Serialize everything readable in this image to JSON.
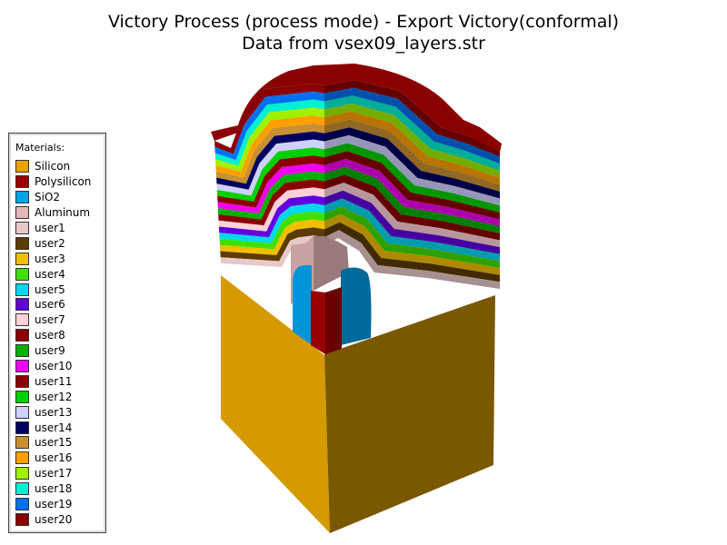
{
  "window": {
    "title_line1": "Victory Process  (process mode) - Export Victory(conformal)",
    "title_line2": "Data from vsex09_layers.str"
  },
  "legend": {
    "title": "Materials:",
    "items": [
      {
        "label": "Silicon",
        "color": "#E8A300"
      },
      {
        "label": "Polysilicon",
        "color": "#9B0000"
      },
      {
        "label": "SiO2",
        "color": "#00A3E8"
      },
      {
        "label": "Aluminum",
        "color": "#E2B8B8"
      },
      {
        "label": "user1",
        "color": "#E8C8C8"
      },
      {
        "label": "user2",
        "color": "#5C3A00"
      },
      {
        "label": "user3",
        "color": "#F0C000"
      },
      {
        "label": "user4",
        "color": "#40E000"
      },
      {
        "label": "user5",
        "color": "#00D8F0"
      },
      {
        "label": "user6",
        "color": "#6000E0"
      },
      {
        "label": "user7",
        "color": "#FFD0D8"
      },
      {
        "label": "user8",
        "color": "#8B0000"
      },
      {
        "label": "user9",
        "color": "#00B000"
      },
      {
        "label": "user10",
        "color": "#F000F0"
      },
      {
        "label": "user11",
        "color": "#8B0000"
      },
      {
        "label": "user12",
        "color": "#00D000"
      },
      {
        "label": "user13",
        "color": "#D0D0FF"
      },
      {
        "label": "user14",
        "color": "#000060"
      },
      {
        "label": "user15",
        "color": "#C89030"
      },
      {
        "label": "user16",
        "color": "#FFA000"
      },
      {
        "label": "user17",
        "color": "#A0F000"
      },
      {
        "label": "user18",
        "color": "#00F0D0"
      },
      {
        "label": "user19",
        "color": "#0070F0"
      },
      {
        "label": "user20",
        "color": "#8B0000"
      }
    ]
  },
  "structure": {
    "substrate_material": "Silicon",
    "layer_sequence": [
      "user1",
      "user2",
      "user3",
      "user4",
      "user5",
      "user6",
      "user7",
      "user8",
      "user9",
      "user10",
      "user11",
      "user12",
      "user13",
      "user14",
      "user15",
      "user16",
      "user17",
      "user18",
      "user19",
      "user20"
    ],
    "colors": {
      "silicon_front": "#D49A00",
      "silicon_side": "#7A5800",
      "aluminum_front": "#C9A2A2",
      "aluminum_side": "#9A7A7A",
      "oxide_front": "#0094D8",
      "oxide_side": "#006A9A",
      "poly_front": "#9B0000",
      "poly_side": "#6A0000"
    }
  }
}
